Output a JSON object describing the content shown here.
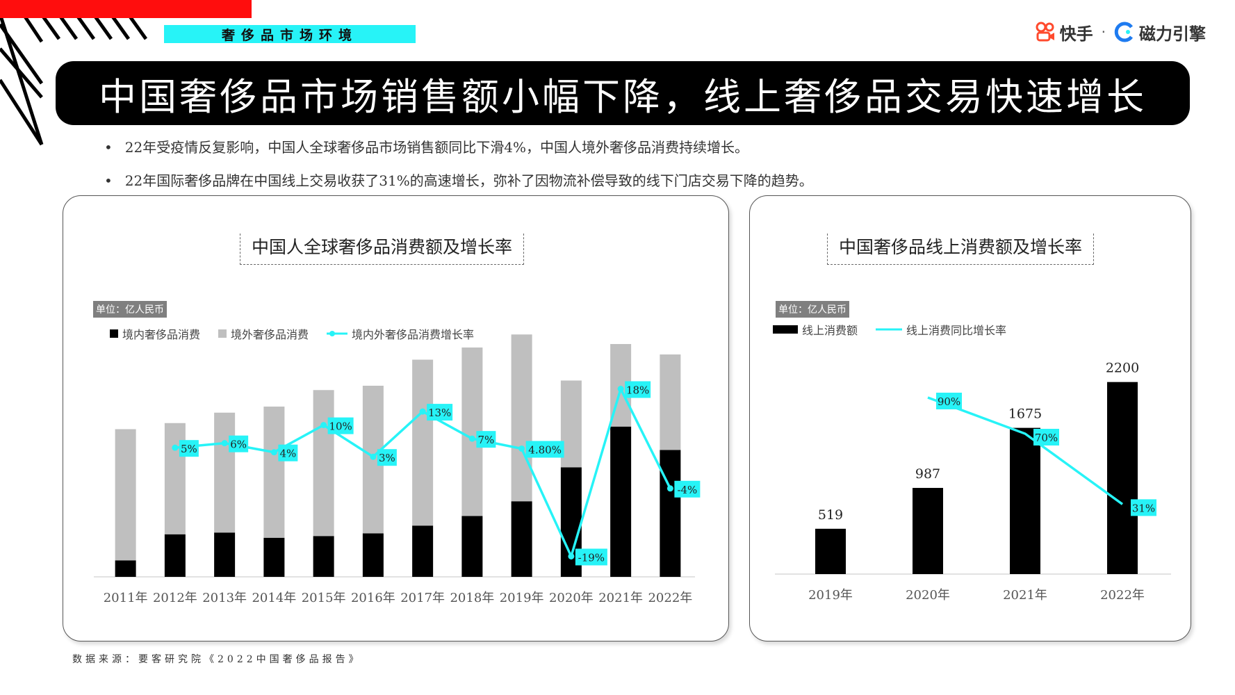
{
  "header": {
    "section_tag": "奢侈品市场环境",
    "title": "中国奢侈品市场销售额小幅下降，线上奢侈品交易快速增长",
    "logo_kuaishou": "快手",
    "logo_separator": "·",
    "logo_cili": "磁力引擎"
  },
  "bullets": [
    "22年受疫情反复影响，中国人全球奢侈品市场销售额同比下滑4%，中国人境外奢侈品消费持续增长。",
    "22年国际奢侈品牌在中国线上交易收获了31%的高速增长，弥补了因物流补偿导致的线下门店交易下降的趋势。"
  ],
  "footer": {
    "source": "数据来源：要客研究院《2022中国奢侈品报告》"
  },
  "colors": {
    "accent_cyan": "#27f3f7",
    "red": "#ff0d0d",
    "bar_black": "#000000",
    "bar_gray": "#bfbfbf"
  },
  "chart_data": [
    {
      "type": "bar",
      "stacked": true,
      "title": "中国人全球奢侈品消费额及增长率",
      "unit": "单位：亿人民币",
      "categories": [
        "2011年",
        "2012年",
        "2013年",
        "2014年",
        "2015年",
        "2016年",
        "2017年",
        "2018年",
        "2019年",
        "2020年",
        "2021年",
        "2022年"
      ],
      "series": [
        {
          "name": "境内奢侈品消费",
          "color": "#000000",
          "values": [
            190,
            490,
            510,
            450,
            470,
            500,
            590,
            700,
            870,
            1260,
            1730,
            1460
          ]
        },
        {
          "name": "境外奢侈品消费",
          "color": "#bfbfbf",
          "values": [
            1510,
            1280,
            1380,
            1510,
            1680,
            1700,
            1910,
            1940,
            1920,
            1000,
            950,
            1100
          ]
        }
      ],
      "line": {
        "name": "境内外奢侈品消费增长率",
        "color": "#27f3f7",
        "labels": [
          "",
          "5%",
          "6%",
          "4%",
          "10%",
          "3%",
          "13%",
          "7%",
          "4.80%",
          "-19%",
          "18%",
          "-4%"
        ],
        "values": [
          null,
          5,
          6,
          4,
          10,
          3,
          13,
          7,
          4.8,
          -19,
          18,
          -4
        ],
        "range": [
          -22,
          21
        ]
      },
      "ylim": [
        0,
        2800
      ],
      "legend_position": "top-left",
      "grid": false
    },
    {
      "type": "bar",
      "title": "中国奢侈品线上消费额及增长率",
      "unit": "单位：亿人民币",
      "categories": [
        "2019年",
        "2020年",
        "2021年",
        "2022年"
      ],
      "series": [
        {
          "name": "线上消费额",
          "color": "#000000",
          "values": [
            519,
            987,
            1675,
            2200
          ]
        }
      ],
      "line": {
        "name": "线上消费同比增长率",
        "color": "#27f3f7",
        "labels": [
          "",
          "90%",
          "70%",
          "31%"
        ],
        "values": [
          null,
          90,
          70,
          31
        ],
        "range": [
          10,
          110
        ]
      },
      "ylim": [
        0,
        2500
      ],
      "legend_position": "top-left",
      "grid": false
    }
  ]
}
